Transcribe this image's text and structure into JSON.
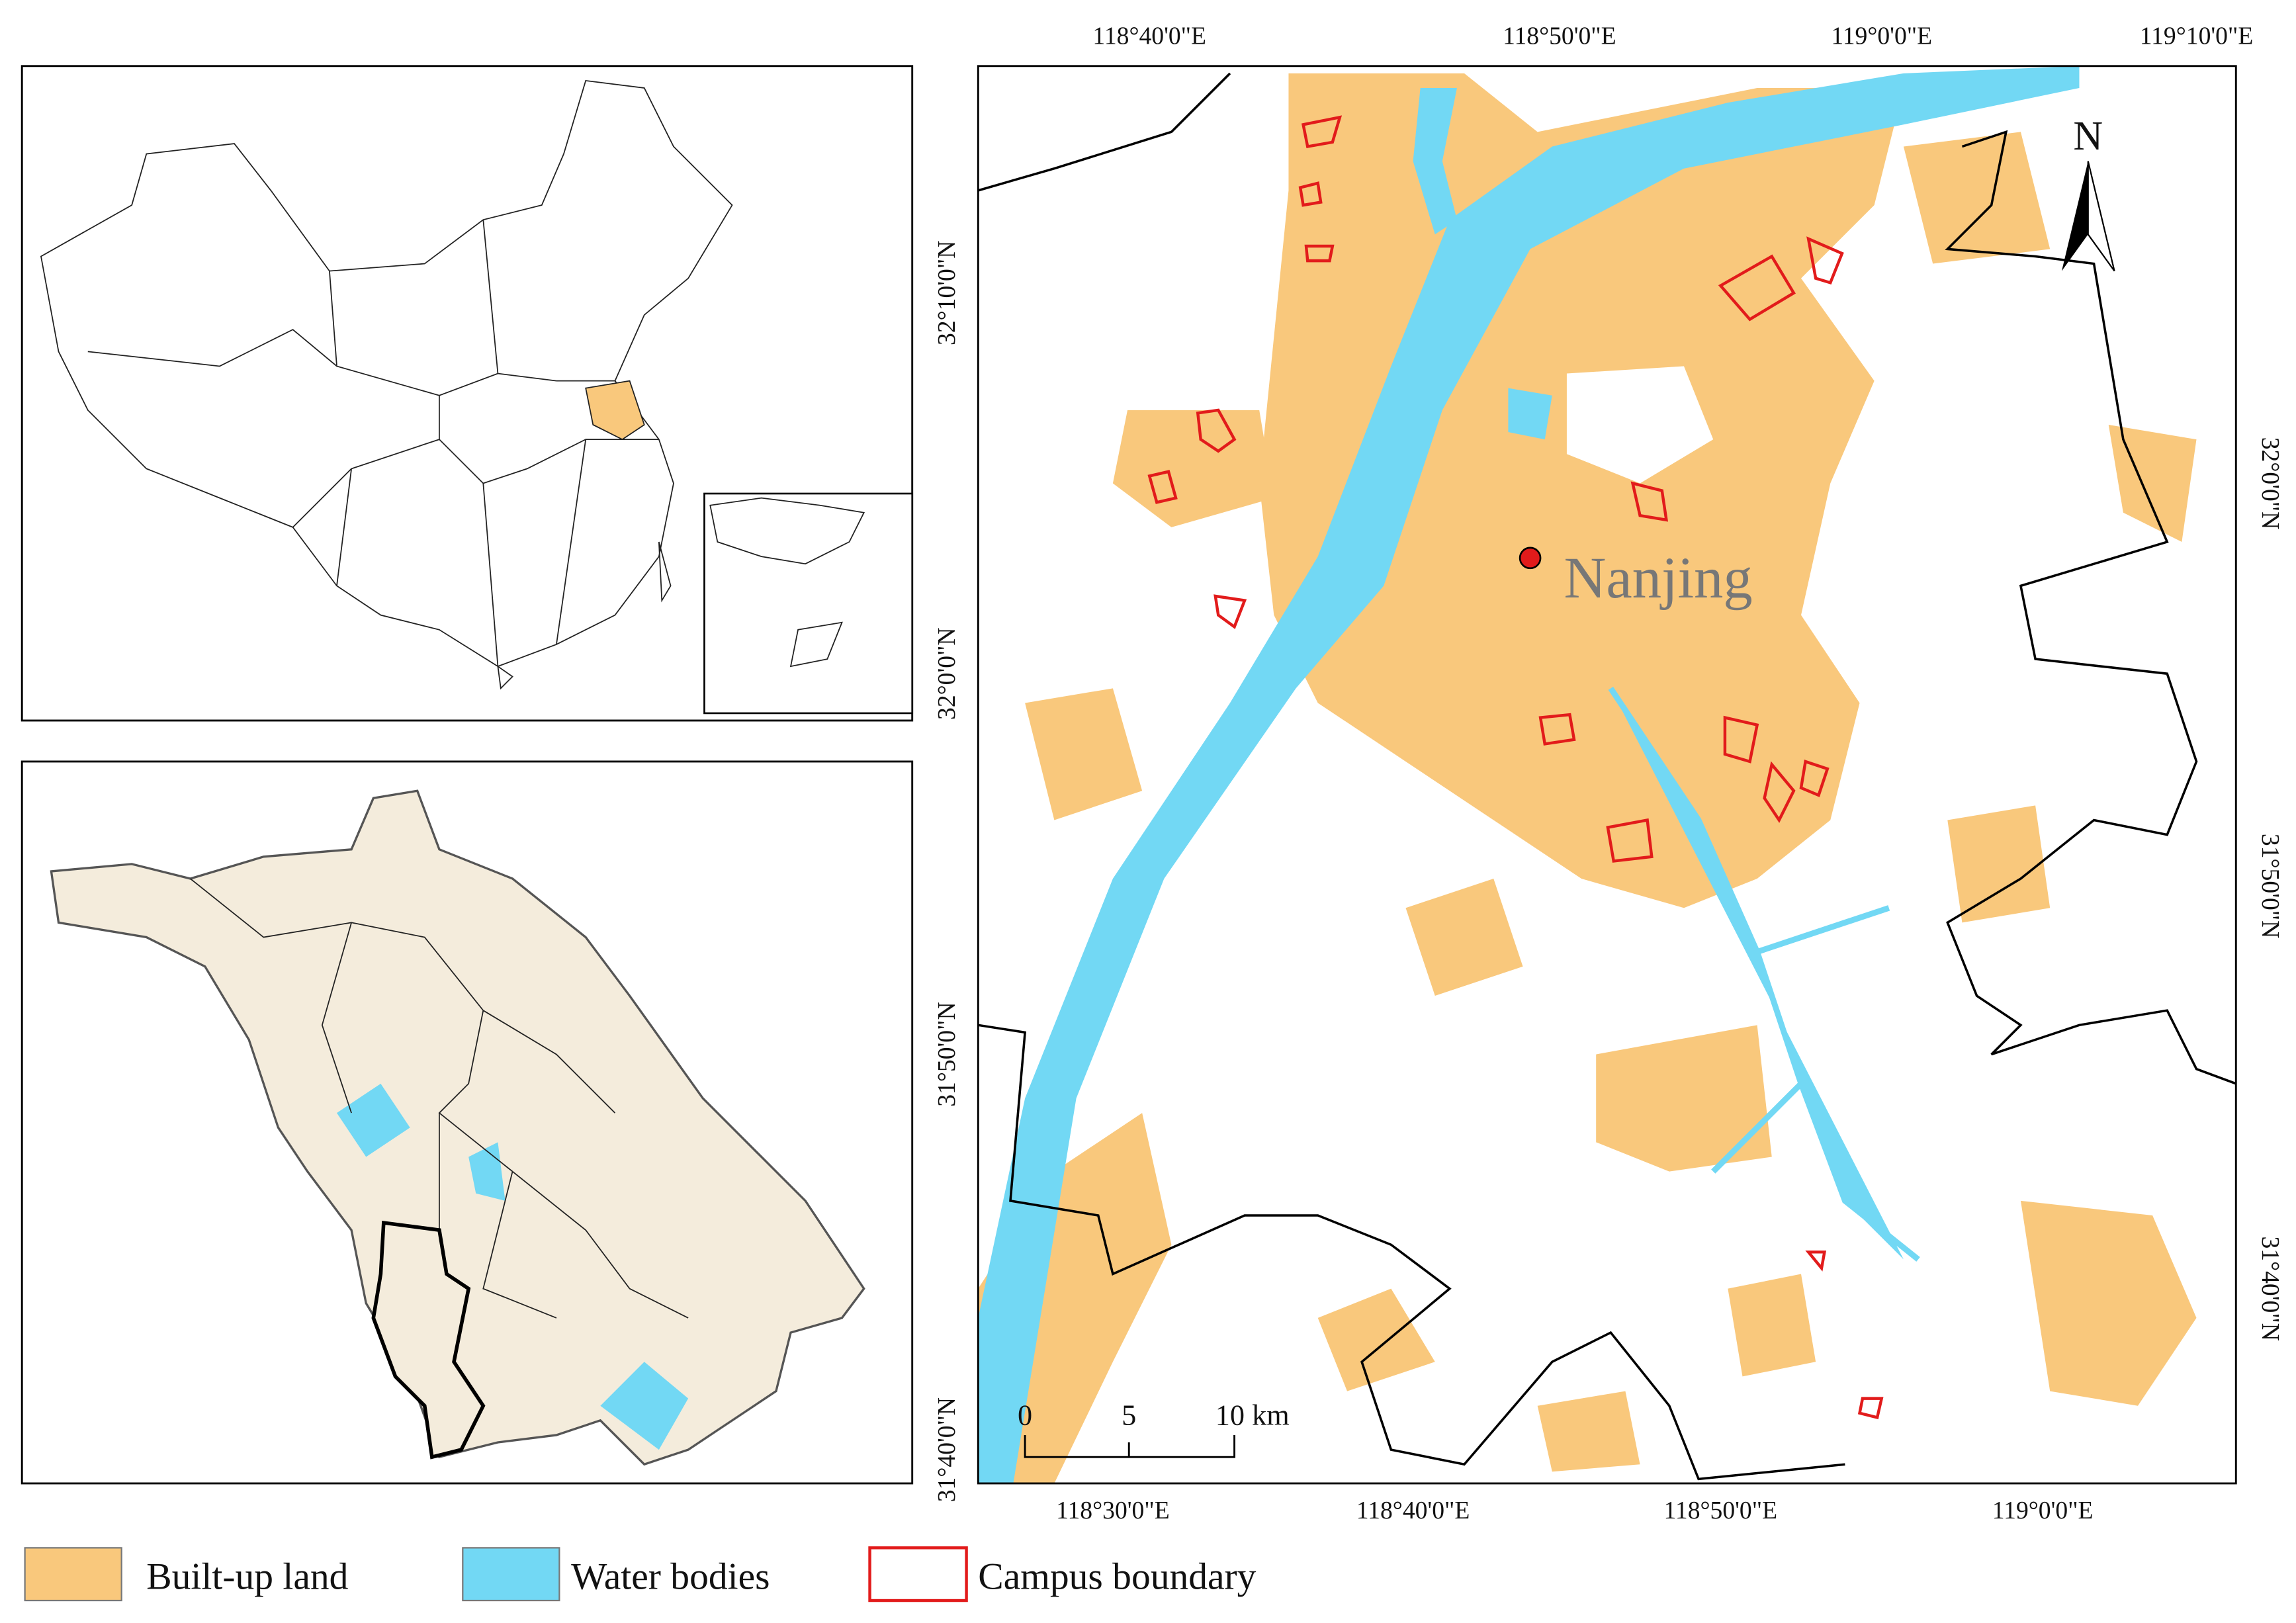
{
  "main_map": {
    "city_label": "Nanjing",
    "north_label": "N",
    "top_lon_labels": [
      "118°40'0\"E",
      "118°50'0\"E",
      "119°0'0\"E",
      "119°10'0\"E"
    ],
    "bottom_lon_labels": [
      "118°30'0\"E",
      "118°40'0\"E",
      "118°50'0\"E",
      "119°0'0\"E"
    ],
    "left_lat_labels": [
      "32°10'0\"N",
      "32°0'0\"N",
      "31°50'0\"N",
      "31°40'0\"N"
    ],
    "right_lat_labels": [
      "32°0'0\"N",
      "31°50'0\"N",
      "31°40'0\"N"
    ],
    "scale_bar": [
      "0",
      "5",
      "10 km"
    ]
  },
  "legend": [
    {
      "label": "Built-up land"
    },
    {
      "label": "Water bodies"
    },
    {
      "label": "Campus boundary"
    }
  ]
}
